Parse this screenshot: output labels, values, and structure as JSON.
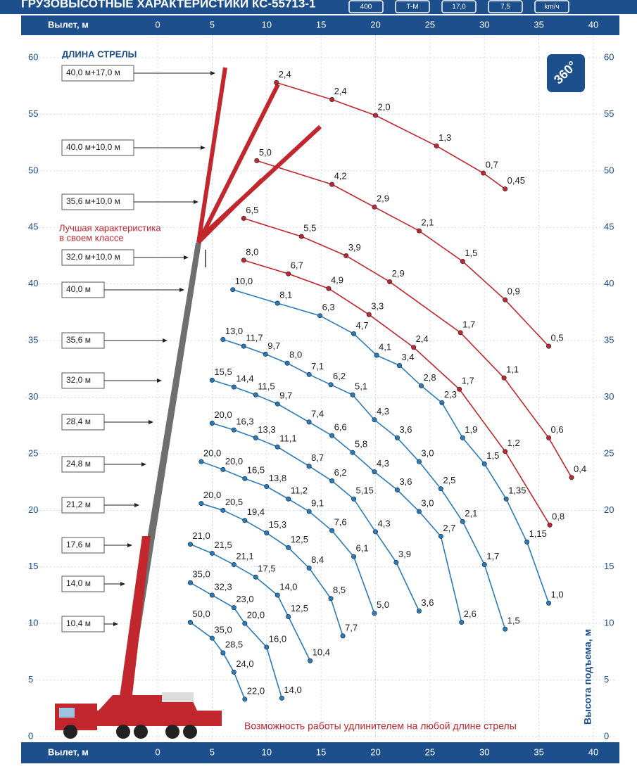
{
  "chart_data": {
    "type": "line",
    "title": "ГРУЗОВЫСОТНЫЕ ХАРАКТЕРИСТИКИ КС-55713-1",
    "icon_labels": [
      "400",
      "T-M",
      "17,0",
      "7,5",
      "km/ч"
    ],
    "x_label": "Вылет, м",
    "y_label": "Высота подъема, м",
    "legend_title": "ДЛИНА СТРЕЛЫ",
    "note_best": [
      "Лучшая характеристика",
      "в своем классе"
    ],
    "note_extension": "Возможность работы удлинителем на любой длине стрелы",
    "badge": "360°",
    "xlim": [
      0,
      40
    ],
    "xticks": [
      0,
      5,
      10,
      15,
      20,
      25,
      30,
      35,
      40
    ],
    "ylim": [
      0,
      60
    ],
    "yticks": [
      0,
      5,
      10,
      15,
      20,
      25,
      30,
      35,
      40,
      45,
      50,
      55,
      60
    ],
    "grid": true,
    "series": [
      {
        "name": "40,0 м+17,0 м",
        "color": "#c1272d",
        "x": [
          10.9,
          16.0,
          20.0,
          25.6,
          29.9,
          31.9
        ],
        "values": [
          57.8,
          56.3,
          54.9,
          52.2,
          49.8,
          48.4
        ],
        "loads": [
          "2,4",
          "2,4",
          "2,0",
          "1,3",
          "0,7",
          "0,45"
        ]
      },
      {
        "name": "40,0 м+10,0 м",
        "color": "#c1272d",
        "x": [
          9.1,
          16.0,
          19.9,
          24.0,
          28.0,
          31.9,
          35.9
        ],
        "values": [
          50.9,
          48.8,
          46.8,
          44.7,
          42.0,
          38.6,
          34.5
        ],
        "loads": [
          "5,0",
          "4,2",
          "2,9",
          "2,1",
          "1,5",
          "0,9",
          "0,5"
        ]
      },
      {
        "name": "35,6 м+10,0 м",
        "color": "#c1272d",
        "x": [
          7.9,
          13.2,
          17.3,
          21.3,
          27.8,
          31.8,
          35.9,
          38.0
        ],
        "values": [
          45.8,
          44.2,
          42.5,
          40.2,
          35.7,
          31.7,
          26.4,
          22.9
        ],
        "loads": [
          "6,5",
          "5,5",
          "3,9",
          "2,9",
          "1,7",
          "1,1",
          "0,6",
          "0,4"
        ]
      },
      {
        "name": "32,0 м+10,0 м",
        "color": "#c1272d",
        "x": [
          7.9,
          12.0,
          15.7,
          19.4,
          23.5,
          27.7,
          31.9,
          36.0
        ],
        "values": [
          42.1,
          40.9,
          39.6,
          37.3,
          34.4,
          30.7,
          25.2,
          18.7
        ],
        "loads": [
          "8,0",
          "6,7",
          "4,9",
          "3,3",
          "2,4",
          "1,7",
          "1,2",
          "0,8"
        ]
      },
      {
        "name": "40,0 м",
        "color": "#2b7bb9",
        "x": [
          6.9,
          11.0,
          14.9,
          18.0,
          20.1,
          22.2,
          24.2,
          26.1,
          28.0,
          30.0,
          32.0,
          33.9,
          35.9
        ],
        "values": [
          39.5,
          38.3,
          37.2,
          35.6,
          33.7,
          32.8,
          31.0,
          29.5,
          26.4,
          24.1,
          21.0,
          17.2,
          11.8
        ],
        "loads": [
          "10,0",
          "8,1",
          "6,3",
          "4,7",
          "4,1",
          "3,4",
          "2,8",
          "2,3",
          "1,9",
          "1,5",
          "1,35",
          "1,15",
          "1,0"
        ]
      },
      {
        "name": "35,6 м",
        "color": "#2b7bb9",
        "x": [
          6.0,
          7.9,
          9.9,
          11.9,
          13.9,
          15.9,
          17.9,
          19.9,
          22.0,
          24.0,
          26.0,
          28.0,
          30.0,
          31.9
        ],
        "values": [
          35.1,
          34.5,
          33.8,
          33.0,
          32.0,
          31.1,
          30.2,
          28.0,
          26.4,
          24.3,
          21.9,
          19.0,
          15.2,
          9.5
        ],
        "loads": [
          "13,0",
          "11,7",
          "9,7",
          "8,0",
          "7,1",
          "6,2",
          "5,1",
          "4,3",
          "3,6",
          "3,0",
          "2,5",
          "2,1",
          "1,7",
          "1,5"
        ]
      },
      {
        "name": "32,0 м",
        "color": "#2b7bb9",
        "x": [
          5.0,
          7.0,
          9.0,
          11.0,
          13.9,
          16.0,
          17.9,
          19.9,
          22.0,
          24.0,
          26.0,
          27.9
        ],
        "values": [
          31.5,
          30.9,
          30.2,
          29.4,
          27.8,
          26.6,
          25.1,
          23.4,
          21.8,
          19.9,
          17.7,
          10.1
        ],
        "loads": [
          "15,5",
          "14,4",
          "11,5",
          "9,7",
          "7,4",
          "6,6",
          "5,8",
          "4,3",
          "3,6",
          "3,0",
          "2,7",
          "2,6"
        ]
      },
      {
        "name": "28,4 м",
        "color": "#2b7bb9",
        "x": [
          5.0,
          7.0,
          9.0,
          11.0,
          13.9,
          16.0,
          18.0,
          20.0,
          21.9,
          24.0
        ],
        "values": [
          27.7,
          27.1,
          26.4,
          25.6,
          23.9,
          22.6,
          21.0,
          18.1,
          15.4,
          11.1
        ],
        "loads": [
          "20,0",
          "16,3",
          "13,3",
          "11,1",
          "8,7",
          "6,2",
          "5,15",
          "4,3",
          "3,9",
          "3,6"
        ]
      },
      {
        "name": "24,8 м",
        "color": "#2b7bb9",
        "x": [
          4.0,
          6.0,
          8.0,
          10.0,
          12.0,
          13.9,
          16.0,
          18.0,
          19.9
        ],
        "values": [
          24.3,
          23.6,
          22.8,
          22.1,
          21.0,
          19.9,
          18.2,
          15.9,
          10.9
        ],
        "loads": [
          "20,0",
          "20,0",
          "16,5",
          "13,8",
          "11,2",
          "9,1",
          "7,6",
          "6,1",
          "5,0"
        ]
      },
      {
        "name": "21,2 м",
        "color": "#2b7bb9",
        "x": [
          4.0,
          6.0,
          8.0,
          10.0,
          12.0,
          13.9,
          15.9,
          17.0
        ],
        "values": [
          20.6,
          20.0,
          19.1,
          18.0,
          16.7,
          14.9,
          12.2,
          8.9
        ],
        "loads": [
          "20,0",
          "20,5",
          "19,4",
          "15,3",
          "12,5",
          "8,4",
          "8,5",
          "7,7"
        ]
      },
      {
        "name": "17,6 м",
        "color": "#2b7bb9",
        "x": [
          3.0,
          5.0,
          7.0,
          9.0,
          11.0,
          12.0,
          14.0
        ],
        "values": [
          17.0,
          16.2,
          15.2,
          14.1,
          12.5,
          10.6,
          6.7
        ],
        "loads": [
          "21,0",
          "21,5",
          "21,1",
          "17,5",
          "14,0",
          "12,5",
          "10,4"
        ]
      },
      {
        "name": "14,0 м",
        "color": "#2b7bb9",
        "x": [
          3.0,
          5.0,
          7.0,
          8.0,
          10.0,
          11.4
        ],
        "values": [
          13.6,
          12.5,
          11.4,
          10.0,
          7.9,
          3.4
        ],
        "loads": [
          "35,0",
          "32,3",
          "23,0",
          "20,0",
          "16,0",
          "14,0"
        ]
      },
      {
        "name": "10,4 м",
        "color": "#2b7bb9",
        "x": [
          3.0,
          5.0,
          6.0,
          7.0,
          8.0
        ],
        "values": [
          10.1,
          8.7,
          7.4,
          5.7,
          3.3
        ],
        "loads": [
          "50,0",
          "35,0",
          "28,5",
          "24,0",
          "22,0"
        ]
      }
    ]
  }
}
